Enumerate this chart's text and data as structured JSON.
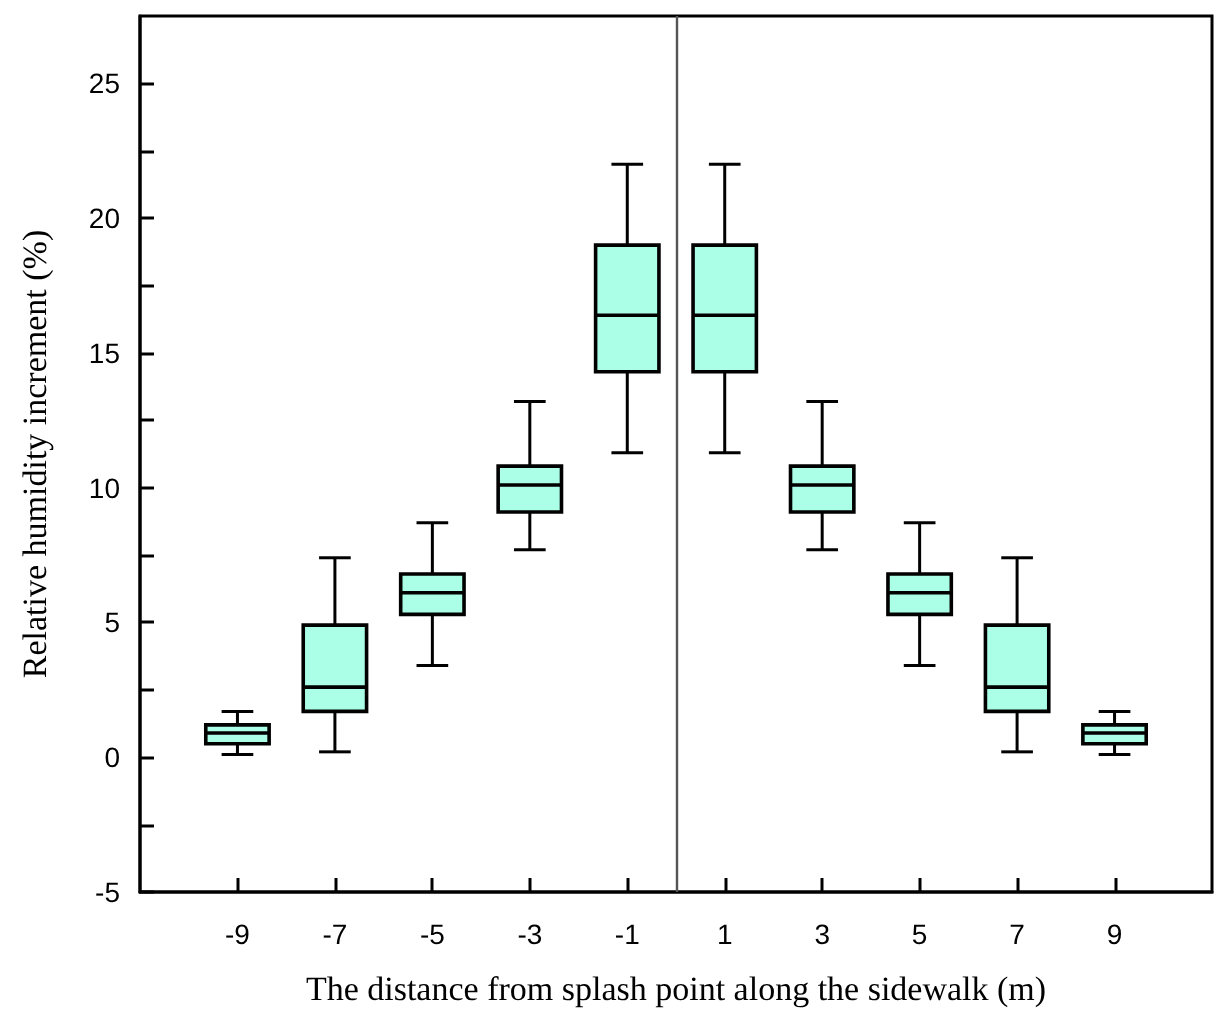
{
  "chart_data": {
    "type": "box",
    "xlabel": "The distance from splash point along the sidewalk (m)",
    "ylabel": "Relative humidity increment (%)",
    "x": [
      -9,
      -7,
      -5,
      -3,
      -1,
      1,
      3,
      5,
      7,
      9
    ],
    "xlim": [
      -11,
      11
    ],
    "xticks": [
      -9,
      -7,
      -5,
      -3,
      -1,
      1,
      3,
      5,
      7,
      9
    ],
    "ylim": [
      -5,
      27.5
    ],
    "yticks": [
      -5,
      {
        "value": -2.5,
        "label": null
      },
      0,
      {
        "value": 2.5,
        "label": null
      },
      5,
      {
        "value": 7.5,
        "label": null
      },
      10,
      {
        "value": 12.5,
        "label": null
      },
      15,
      {
        "value": 17.5,
        "label": null
      },
      20,
      {
        "value": 22.5,
        "label": null
      },
      25
    ],
    "grid": false,
    "ref_lines": [
      {
        "axis": "x",
        "value": 0,
        "color": "#555555"
      }
    ],
    "series": [
      {
        "color": "#aaffe6",
        "boxes": [
          {
            "low": 0.1,
            "q1": 0.5,
            "median": 0.9,
            "q3": 1.2,
            "high": 1.7
          },
          {
            "low": 0.2,
            "q1": 1.7,
            "median": 2.6,
            "q3": 4.9,
            "high": 7.4
          },
          {
            "low": 3.4,
            "q1": 5.3,
            "median": 6.1,
            "q3": 6.8,
            "high": 8.7
          },
          {
            "low": 7.7,
            "q1": 9.1,
            "median": 10.1,
            "q3": 10.8,
            "high": 13.2
          },
          {
            "low": 11.3,
            "q1": 14.3,
            "median": 16.4,
            "q3": 19.0,
            "high": 22.0
          },
          {
            "low": 11.3,
            "q1": 14.3,
            "median": 16.4,
            "q3": 19.0,
            "high": 22.0
          },
          {
            "low": 7.7,
            "q1": 9.1,
            "median": 10.1,
            "q3": 10.8,
            "high": 13.2
          },
          {
            "low": 3.4,
            "q1": 5.3,
            "median": 6.1,
            "q3": 6.8,
            "high": 8.7
          },
          {
            "low": 0.2,
            "q1": 1.7,
            "median": 2.6,
            "q3": 4.9,
            "high": 7.4
          },
          {
            "low": 0.1,
            "q1": 0.5,
            "median": 0.9,
            "q3": 1.2,
            "high": 1.7
          }
        ]
      }
    ]
  }
}
